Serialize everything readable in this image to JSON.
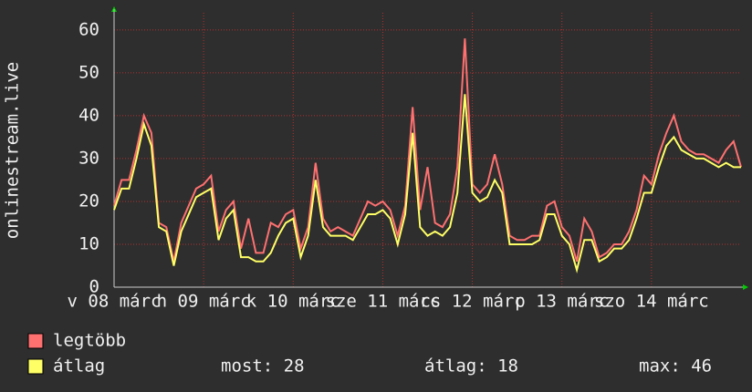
{
  "chart_data": {
    "type": "line",
    "y_label": "onlinestream.live",
    "x": [
      0,
      2,
      4,
      6,
      8,
      10,
      12,
      14,
      16,
      18,
      20,
      22,
      24,
      26,
      28,
      30,
      32,
      34,
      36,
      38,
      40,
      42,
      44,
      46,
      48,
      50,
      52,
      54,
      56,
      58,
      60,
      62,
      64,
      66,
      68,
      70,
      72,
      74,
      76,
      78,
      80,
      82,
      84,
      86,
      88,
      90,
      92,
      94,
      96,
      98,
      100,
      102,
      104,
      106,
      108,
      110,
      112,
      114,
      116,
      118,
      120,
      122,
      124,
      126,
      128,
      130,
      132,
      134,
      136,
      138,
      140,
      142,
      144,
      146,
      148,
      150,
      152,
      154,
      156,
      158,
      160,
      162,
      164,
      166,
      168
    ],
    "xlim": [
      0,
      168
    ],
    "xticks": [
      {
        "value": 0,
        "label": "v 08 márc"
      },
      {
        "value": 24,
        "label": "h 09 márc"
      },
      {
        "value": 48,
        "label": "k 10 márc"
      },
      {
        "value": 72,
        "label": "sze 11 márc"
      },
      {
        "value": 96,
        "label": "cs 12 márc"
      },
      {
        "value": 120,
        "label": "p 13 márc"
      },
      {
        "value": 144,
        "label": "szo 14 márc"
      }
    ],
    "ylim": [
      0,
      64
    ],
    "yticks": [
      0,
      10,
      20,
      30,
      40,
      50,
      60
    ],
    "grid": true,
    "series": [
      {
        "name": "legtöbb",
        "color": "#ff7070",
        "values": [
          19,
          25,
          25,
          32,
          40,
          36,
          15,
          14,
          6,
          15,
          19,
          23,
          24,
          26,
          13,
          18,
          20,
          9,
          16,
          8,
          8,
          15,
          14,
          17,
          18,
          9,
          14,
          29,
          16,
          13,
          14,
          13,
          12,
          16,
          20,
          19,
          20,
          18,
          12,
          19,
          42,
          18,
          28,
          15,
          14,
          17,
          28,
          58,
          24,
          22,
          24,
          31,
          24,
          12,
          11,
          11,
          12,
          12,
          19,
          20,
          14,
          12,
          6,
          16,
          13,
          7,
          8,
          10,
          10,
          13,
          18,
          26,
          24,
          31,
          36,
          40,
          34,
          32,
          31,
          31,
          30,
          29,
          32,
          34,
          28
        ]
      },
      {
        "name": "átlag",
        "color": "#ffff66",
        "values": [
          18,
          23,
          23,
          30,
          38,
          33,
          14,
          13,
          5,
          13,
          17,
          21,
          22,
          23,
          11,
          16,
          18,
          7,
          7,
          6,
          6,
          8,
          12,
          15,
          16,
          7,
          12,
          25,
          14,
          12,
          12,
          12,
          11,
          14,
          17,
          17,
          18,
          16,
          10,
          17,
          36,
          14,
          12,
          13,
          12,
          14,
          22,
          45,
          22,
          20,
          21,
          25,
          22,
          10,
          10,
          10,
          10,
          11,
          17,
          17,
          12,
          10,
          4,
          11,
          11,
          6,
          7,
          9,
          9,
          11,
          16,
          22,
          22,
          28,
          33,
          35,
          32,
          31,
          30,
          30,
          29,
          28,
          29,
          28,
          28
        ]
      }
    ],
    "stats": [
      "most: 28",
      "átlag: 18",
      "max: 46"
    ]
  }
}
